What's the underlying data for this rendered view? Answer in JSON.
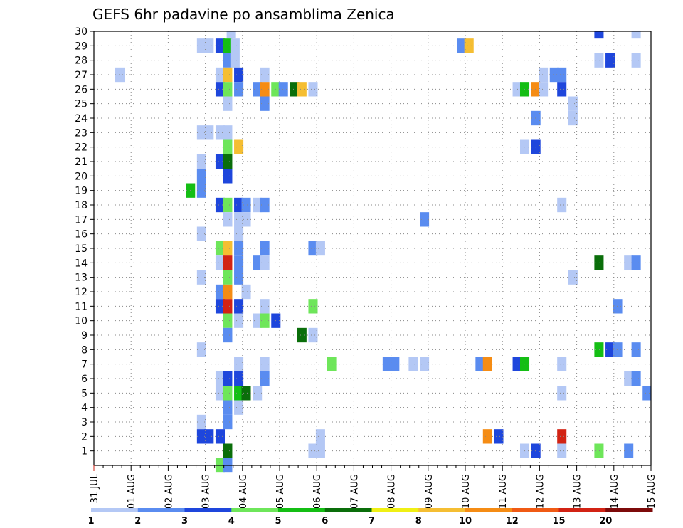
{
  "chart_data": {
    "type": "heatmap",
    "title": "GEFS 6hr padavine po ansamblima Zenica",
    "xlabel": "",
    "ylabel": "",
    "x_ticks": [
      "31 JUL",
      "01 AUG",
      "02 AUG",
      "03 AUG",
      "04 AUG",
      "05 AUG",
      "06 AUG",
      "07 AUG",
      "08 AUG",
      "09 AUG",
      "10 AUG",
      "11 AUG",
      "12 AUG",
      "13 AUG",
      "14 AUG",
      "15 AUG"
    ],
    "x_range_days": [
      0,
      15
    ],
    "step_hours": 6,
    "y_ticks": [
      1,
      2,
      3,
      4,
      5,
      6,
      7,
      8,
      9,
      10,
      11,
      12,
      13,
      14,
      15,
      16,
      17,
      18,
      19,
      20,
      21,
      22,
      23,
      24,
      25,
      26,
      27,
      28,
      29,
      30
    ],
    "y_range": [
      0,
      30
    ],
    "grid": "dotted",
    "legend": {
      "placement": "bottom",
      "labels": [
        "1",
        "2",
        "3",
        "4",
        "5",
        "6",
        "7",
        "8",
        "10",
        "12",
        "15",
        "20"
      ],
      "colors": [
        "#b4c8f5",
        "#5a8cf0",
        "#1e46dc",
        "#6ee65a",
        "#14be14",
        "#0a6e0a",
        "#f0f014",
        "#f5be32",
        "#f58c14",
        "#f05a14",
        "#d22314",
        "#7d0a0a"
      ]
    },
    "cells": [
      [
        30,
        3.7,
        1
      ],
      [
        30,
        13.6,
        3
      ],
      [
        30,
        14.6,
        1
      ],
      [
        29,
        2.9,
        1
      ],
      [
        29,
        3.1,
        1
      ],
      [
        29,
        3.4,
        3
      ],
      [
        29,
        3.6,
        5
      ],
      [
        29,
        3.8,
        1
      ],
      [
        29,
        9.9,
        2
      ],
      [
        29,
        10.1,
        8
      ],
      [
        28,
        3.6,
        2
      ],
      [
        28,
        3.8,
        1
      ],
      [
        28,
        13.6,
        1
      ],
      [
        28,
        13.9,
        3
      ],
      [
        28,
        14.6,
        1
      ],
      [
        27,
        0.7,
        1
      ],
      [
        27,
        3.4,
        1
      ],
      [
        27,
        3.6,
        8
      ],
      [
        27,
        3.9,
        3
      ],
      [
        27,
        4.6,
        1
      ],
      [
        27,
        12.1,
        1
      ],
      [
        27,
        12.4,
        2
      ],
      [
        27,
        12.6,
        2
      ],
      [
        26,
        3.4,
        3
      ],
      [
        26,
        3.6,
        4
      ],
      [
        26,
        3.9,
        2
      ],
      [
        26,
        4.4,
        2
      ],
      [
        26,
        4.6,
        9
      ],
      [
        26,
        4.9,
        4
      ],
      [
        26,
        5.1,
        2
      ],
      [
        26,
        5.4,
        6
      ],
      [
        26,
        5.6,
        8
      ],
      [
        26,
        5.9,
        1
      ],
      [
        26,
        11.4,
        1
      ],
      [
        26,
        11.6,
        5
      ],
      [
        26,
        11.9,
        9
      ],
      [
        26,
        12.1,
        1
      ],
      [
        26,
        12.6,
        3
      ],
      [
        25,
        3.6,
        1
      ],
      [
        25,
        4.6,
        2
      ],
      [
        25,
        12.9,
        1
      ],
      [
        24,
        11.9,
        2
      ],
      [
        24,
        12.9,
        1
      ],
      [
        23,
        2.9,
        1
      ],
      [
        23,
        3.1,
        1
      ],
      [
        23,
        3.4,
        1
      ],
      [
        23,
        3.6,
        1
      ],
      [
        22,
        3.6,
        4
      ],
      [
        22,
        3.9,
        8
      ],
      [
        22,
        11.6,
        1
      ],
      [
        22,
        11.9,
        3
      ],
      [
        21,
        2.9,
        1
      ],
      [
        21,
        3.4,
        3
      ],
      [
        21,
        3.6,
        6
      ],
      [
        20,
        2.9,
        2
      ],
      [
        20,
        3.6,
        3
      ],
      [
        19,
        2.6,
        5
      ],
      [
        19,
        2.9,
        2
      ],
      [
        18,
        3.4,
        3
      ],
      [
        18,
        3.6,
        4
      ],
      [
        18,
        3.9,
        3
      ],
      [
        18,
        4.1,
        2
      ],
      [
        18,
        4.4,
        1
      ],
      [
        18,
        4.6,
        2
      ],
      [
        18,
        12.6,
        1
      ],
      [
        17,
        3.6,
        1
      ],
      [
        17,
        3.9,
        1
      ],
      [
        17,
        4.1,
        1
      ],
      [
        17,
        8.9,
        2
      ],
      [
        16,
        2.9,
        1
      ],
      [
        16,
        3.9,
        1
      ],
      [
        15,
        3.4,
        4
      ],
      [
        15,
        3.6,
        8
      ],
      [
        15,
        3.9,
        2
      ],
      [
        15,
        4.6,
        2
      ],
      [
        15,
        5.9,
        2
      ],
      [
        15,
        6.1,
        1
      ],
      [
        14,
        3.4,
        1
      ],
      [
        14,
        3.6,
        11
      ],
      [
        14,
        3.9,
        2
      ],
      [
        14,
        4.4,
        2
      ],
      [
        14,
        4.6,
        1
      ],
      [
        14,
        13.6,
        6
      ],
      [
        14,
        14.4,
        1
      ],
      [
        14,
        14.6,
        2
      ],
      [
        13,
        2.9,
        1
      ],
      [
        13,
        3.6,
        4
      ],
      [
        13,
        3.9,
        2
      ],
      [
        13,
        12.9,
        1
      ],
      [
        12,
        3.4,
        2
      ],
      [
        12,
        3.6,
        9
      ],
      [
        12,
        4.1,
        1
      ],
      [
        11,
        3.4,
        3
      ],
      [
        11,
        3.6,
        11
      ],
      [
        11,
        3.9,
        3
      ],
      [
        11,
        4.6,
        1
      ],
      [
        11,
        5.9,
        4
      ],
      [
        11,
        14.1,
        2
      ],
      [
        10,
        3.6,
        4
      ],
      [
        10,
        3.9,
        1
      ],
      [
        10,
        4.4,
        1
      ],
      [
        10,
        4.6,
        4
      ],
      [
        10,
        4.9,
        3
      ],
      [
        9,
        3.6,
        2
      ],
      [
        9,
        5.6,
        6
      ],
      [
        9,
        5.9,
        1
      ],
      [
        8,
        2.9,
        1
      ],
      [
        8,
        13.6,
        5
      ],
      [
        8,
        13.9,
        3
      ],
      [
        8,
        14.1,
        2
      ],
      [
        8,
        14.6,
        2
      ],
      [
        7,
        3.9,
        1
      ],
      [
        7,
        4.6,
        1
      ],
      [
        7,
        6.4,
        4
      ],
      [
        7,
        7.9,
        2
      ],
      [
        7,
        8.1,
        2
      ],
      [
        7,
        8.6,
        1
      ],
      [
        7,
        8.9,
        1
      ],
      [
        7,
        10.4,
        2
      ],
      [
        7,
        10.6,
        9
      ],
      [
        7,
        11.4,
        3
      ],
      [
        7,
        11.6,
        5
      ],
      [
        7,
        12.6,
        1
      ],
      [
        6,
        3.4,
        1
      ],
      [
        6,
        3.6,
        3
      ],
      [
        6,
        3.9,
        3
      ],
      [
        6,
        4.6,
        2
      ],
      [
        6,
        14.4,
        1
      ],
      [
        6,
        14.6,
        2
      ],
      [
        5,
        3.4,
        1
      ],
      [
        5,
        3.6,
        4
      ],
      [
        5,
        3.9,
        5
      ],
      [
        5,
        4.1,
        6
      ],
      [
        5,
        4.4,
        1
      ],
      [
        5,
        12.6,
        1
      ],
      [
        5,
        14.9,
        2
      ],
      [
        4,
        3.6,
        2
      ],
      [
        4,
        3.9,
        1
      ],
      [
        3,
        2.9,
        1
      ],
      [
        3,
        3.6,
        2
      ],
      [
        2,
        2.9,
        3
      ],
      [
        2,
        3.1,
        3
      ],
      [
        2,
        3.4,
        3
      ],
      [
        2,
        6.1,
        1
      ],
      [
        2,
        10.6,
        9
      ],
      [
        2,
        10.9,
        3
      ],
      [
        2,
        12.6,
        11
      ],
      [
        1,
        3.6,
        6
      ],
      [
        1,
        5.9,
        1
      ],
      [
        1,
        6.1,
        1
      ],
      [
        1,
        11.6,
        1
      ],
      [
        1,
        11.9,
        3
      ],
      [
        1,
        12.6,
        1
      ],
      [
        1,
        13.6,
        4
      ],
      [
        1,
        14.4,
        2
      ],
      [
        0,
        3.4,
        4
      ],
      [
        0,
        3.6,
        2
      ]
    ]
  }
}
